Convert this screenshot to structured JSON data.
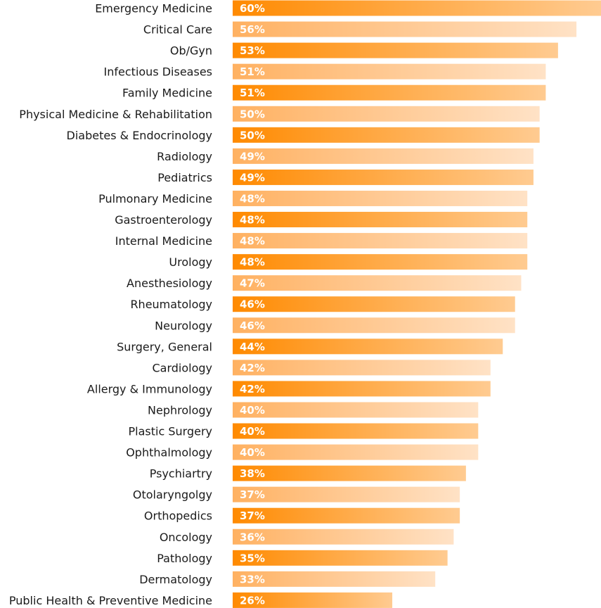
{
  "chart_data": {
    "type": "bar",
    "orientation": "horizontal",
    "title": "",
    "xlabel": "",
    "ylabel": "",
    "value_suffix": "%",
    "xlim": [
      0,
      60
    ],
    "grid": false,
    "legend": "none",
    "categories": [
      "Emergency Medicine",
      "Critical Care",
      "Ob/Gyn",
      "Infectious Diseases",
      "Family Medicine",
      "Physical Medicine & Rehabilitation",
      "Diabetes & Endocrinology",
      "Radiology",
      "Pediatrics",
      "Pulmonary Medicine",
      "Gastroenterology",
      "Internal Medicine",
      "Urology",
      "Anesthesiology",
      "Rheumatology",
      "Neurology",
      "Surgery, General",
      "Cardiology",
      "Allergy & Immunology",
      "Nephrology",
      "Plastic Surgery",
      "Ophthalmology",
      "Psychiartry",
      "Otolaryngolgy",
      "Orthopedics",
      "Oncology",
      "Pathology",
      "Dermatology",
      "Public Health & Preventive Medicine"
    ],
    "values": [
      60,
      56,
      53,
      51,
      51,
      50,
      50,
      49,
      49,
      48,
      48,
      48,
      48,
      47,
      46,
      46,
      44,
      42,
      42,
      40,
      40,
      40,
      38,
      37,
      37,
      36,
      35,
      33,
      26
    ],
    "colors": {
      "dark_start": "#ff8a00",
      "dark_end": "#ffcb91",
      "light_start": "#ffb161",
      "light_end": "#ffe2c6",
      "label": "#1a1a1a",
      "value_label": "#ffffff"
    }
  }
}
